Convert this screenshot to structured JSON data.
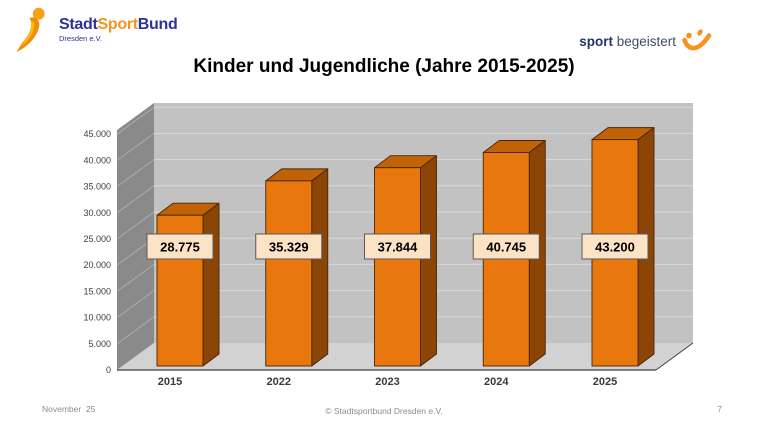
{
  "header": {
    "logo_left": {
      "stadt": "Stadt",
      "sport": "Sport",
      "bund": "Bund",
      "sub": "Dresden e.V."
    },
    "logo_right": {
      "word1": "sport",
      "word2": "begeistert"
    }
  },
  "title": "Kinder und Jugendliche (Jahre 2015-2025)",
  "chart_data": {
    "type": "bar",
    "style": "3d-column",
    "title": "Kinder und Jugendliche (Jahre 2015-2025)",
    "categories": [
      "2015",
      "2022",
      "2023",
      "2024",
      "2025"
    ],
    "values": [
      28775,
      35329,
      37844,
      40745,
      43200
    ],
    "value_labels": [
      "28.775",
      "35.329",
      "37.844",
      "40.745",
      "43.200"
    ],
    "xlabel": "",
    "ylabel": "",
    "ylim": [
      0,
      45000
    ],
    "ytick_step": 5000,
    "ytick_labels": [
      "0",
      "5.000",
      "10.000",
      "15.000",
      "20.000",
      "25.000",
      "30.000",
      "35.000",
      "40.000",
      "45.000"
    ],
    "grid": true,
    "legend": false,
    "colors": {
      "bar_front": "#E8770D",
      "bar_side": "#8B4506",
      "bar_top": "#C06307",
      "bar_outline": "#4A2503",
      "label_box_bg": "#FCE3C6",
      "label_box_border": "#595959",
      "wall_back": "#C2C2C2",
      "wall_side": "#8A8A8A",
      "floor": "#D2D2D2",
      "gridline": "#DADADA",
      "axis_line": "#3F3F3F",
      "tick_text": "#404040"
    }
  },
  "footer": {
    "date": "November  25",
    "copyright": "© Stadtsportbund Dresden e.V.",
    "page": "7"
  }
}
